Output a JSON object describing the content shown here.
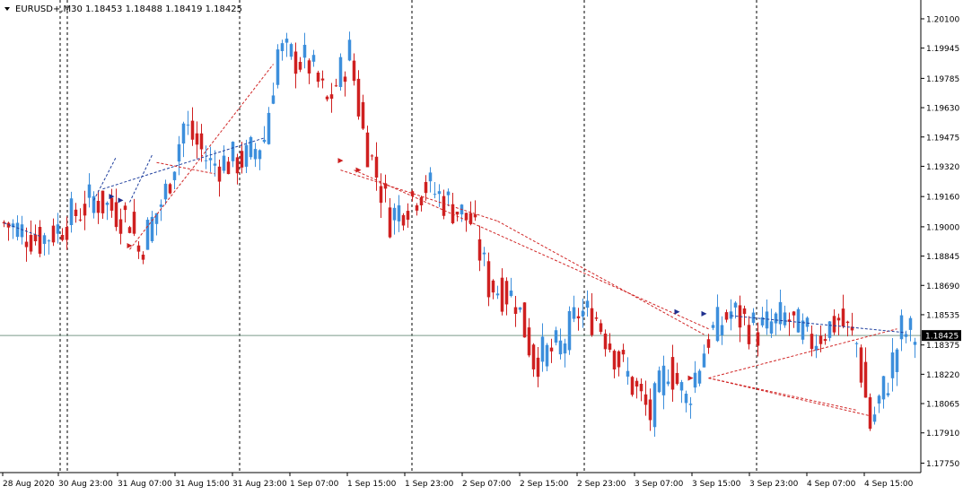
{
  "header": {
    "symbol_line": "EURUSD+,M30  1.18453 1.18488 1.18419 1.18425"
  },
  "chart_data": {
    "type": "candlestick",
    "symbol": "EURUSD+",
    "timeframe": "M30",
    "ohlc_last": {
      "open": 1.18453,
      "high": 1.18488,
      "low": 1.18419,
      "close": 1.18425
    },
    "current_price_label": "1.18425",
    "ylim": [
      1.177,
      1.2019
    ],
    "y_ticks": [
      {
        "value": 1.201,
        "label": "1.20100"
      },
      {
        "value": 1.19945,
        "label": "1.19945"
      },
      {
        "value": 1.19785,
        "label": "1.19785"
      },
      {
        "value": 1.1963,
        "label": "1.19630"
      },
      {
        "value": 1.19475,
        "label": "1.19475"
      },
      {
        "value": 1.1932,
        "label": "1.19320"
      },
      {
        "value": 1.1916,
        "label": "1.19160"
      },
      {
        "value": 1.19,
        "label": "1.19000"
      },
      {
        "value": 1.18845,
        "label": "1.18845"
      },
      {
        "value": 1.1869,
        "label": "1.18690"
      },
      {
        "value": 1.18535,
        "label": "1.18535"
      },
      {
        "value": 1.18375,
        "label": "1.18375"
      },
      {
        "value": 1.1822,
        "label": "1.18220"
      },
      {
        "value": 1.18065,
        "label": "1.18065"
      },
      {
        "value": 1.1791,
        "label": "1.17910"
      },
      {
        "value": 1.1775,
        "label": "1.17750"
      }
    ],
    "x_labels": [
      "28 Aug 2020",
      "30 Aug 23:00",
      "31 Aug 07:00",
      "31 Aug 15:00",
      "31 Aug 23:00",
      "1 Sep 07:00",
      "1 Sep 15:00",
      "1 Sep 23:00",
      "2 Sep 07:00",
      "2 Sep 15:00",
      "2 Sep 23:00",
      "3 Sep 07:00",
      "3 Sep 15:00",
      "3 Sep 23:00",
      "4 Sep 07:00",
      "4 Sep 15:00"
    ],
    "session_separators": 8,
    "bar_count": 204,
    "path_anchors": [
      {
        "bar": 0,
        "price": 1.1902
      },
      {
        "bar": 8,
        "price": 1.1893
      },
      {
        "bar": 12,
        "price": 1.1899
      },
      {
        "bar": 20,
        "price": 1.1915
      },
      {
        "bar": 28,
        "price": 1.1904
      },
      {
        "bar": 30,
        "price": 1.1887
      },
      {
        "bar": 36,
        "price": 1.1918
      },
      {
        "bar": 40,
        "price": 1.1954
      },
      {
        "bar": 46,
        "price": 1.1933
      },
      {
        "bar": 54,
        "price": 1.1936
      },
      {
        "bar": 58,
        "price": 1.1947
      },
      {
        "bar": 61,
        "price": 1.1993
      },
      {
        "bar": 68,
        "price": 1.1986
      },
      {
        "bar": 72,
        "price": 1.1965
      },
      {
        "bar": 77,
        "price": 1.1992
      },
      {
        "bar": 80,
        "price": 1.195
      },
      {
        "bar": 86,
        "price": 1.1905
      },
      {
        "bar": 94,
        "price": 1.1922
      },
      {
        "bar": 104,
        "price": 1.1903
      },
      {
        "bar": 108,
        "price": 1.187
      },
      {
        "bar": 114,
        "price": 1.1862
      },
      {
        "bar": 118,
        "price": 1.183
      },
      {
        "bar": 124,
        "price": 1.1836
      },
      {
        "bar": 128,
        "price": 1.1855
      },
      {
        "bar": 132,
        "price": 1.1852
      },
      {
        "bar": 138,
        "price": 1.1825
      },
      {
        "bar": 144,
        "price": 1.18
      },
      {
        "bar": 148,
        "price": 1.1827
      },
      {
        "bar": 152,
        "price": 1.1808
      },
      {
        "bar": 157,
        "price": 1.1842
      },
      {
        "bar": 162,
        "price": 1.1855
      },
      {
        "bar": 168,
        "price": 1.1845
      },
      {
        "bar": 174,
        "price": 1.1852
      },
      {
        "bar": 180,
        "price": 1.184
      },
      {
        "bar": 186,
        "price": 1.1851
      },
      {
        "bar": 190,
        "price": 1.1838
      },
      {
        "bar": 193,
        "price": 1.1795
      },
      {
        "bar": 197,
        "price": 1.182
      },
      {
        "bar": 200,
        "price": 1.1845
      },
      {
        "bar": 203,
        "price": 1.18425
      }
    ],
    "trend_lines": [
      {
        "color": "#1f3f9e",
        "points": [
          [
            0,
            1.1902
          ],
          [
            8,
            1.1895
          ]
        ]
      },
      {
        "color": "#1f3f9e",
        "points": [
          [
            20,
            1.1914
          ],
          [
            25,
            1.1937
          ]
        ]
      },
      {
        "color": "#1f3f9e",
        "points": [
          [
            22,
            1.192
          ],
          [
            58,
            1.1947
          ]
        ]
      },
      {
        "color": "#1f3f9e",
        "points": [
          [
            28,
            1.1913
          ],
          [
            33,
            1.1938
          ]
        ]
      },
      {
        "color": "#d12626",
        "points": [
          [
            28,
            1.1888
          ],
          [
            60,
            1.1986
          ]
        ]
      },
      {
        "color": "#d12626",
        "points": [
          [
            34,
            1.1934
          ],
          [
            47,
            1.1928
          ]
        ]
      },
      {
        "color": "#d12626",
        "points": [
          [
            75,
            1.193
          ],
          [
            110,
            1.1903
          ]
        ]
      },
      {
        "color": "#d12626",
        "points": [
          [
            110,
            1.1903
          ],
          [
            156,
            1.1843
          ]
        ]
      },
      {
        "color": "#d12626",
        "points": [
          [
            78,
            1.193
          ],
          [
            157,
            1.1846
          ]
        ]
      },
      {
        "color": "#d12626",
        "points": [
          [
            157,
            1.182
          ],
          [
            199,
            1.1846
          ]
        ]
      },
      {
        "color": "#d12626",
        "points": [
          [
            157,
            1.182
          ],
          [
            193,
            1.18
          ]
        ]
      },
      {
        "color": "#d12626",
        "points": [
          [
            157,
            1.182
          ],
          [
            190,
            1.1803
          ]
        ]
      },
      {
        "color": "#1f3f9e",
        "points": [
          [
            162,
            1.1853
          ],
          [
            201,
            1.1844
          ]
        ]
      }
    ],
    "markers": [
      {
        "type": "blue-arrow",
        "bar": 24,
        "price": 1.1916
      },
      {
        "type": "blue-arrow",
        "bar": 26,
        "price": 1.1914
      },
      {
        "type": "red-arrow",
        "bar": 28,
        "price": 1.189
      },
      {
        "type": "red-arrow",
        "bar": 75,
        "price": 1.1935
      },
      {
        "type": "red-arrow",
        "bar": 79,
        "price": 1.193
      },
      {
        "type": "blue-arrow",
        "bar": 150,
        "price": 1.1855
      },
      {
        "type": "blue-arrow",
        "bar": 156,
        "price": 1.1854
      },
      {
        "type": "red-arrow",
        "bar": 153,
        "price": 1.182
      }
    ],
    "colors": {
      "bull": "#3d8fdc",
      "bear": "#cf2020",
      "grid_separator": "#000000",
      "price_line": "#7a9a8a",
      "background": "#ffffff"
    }
  }
}
